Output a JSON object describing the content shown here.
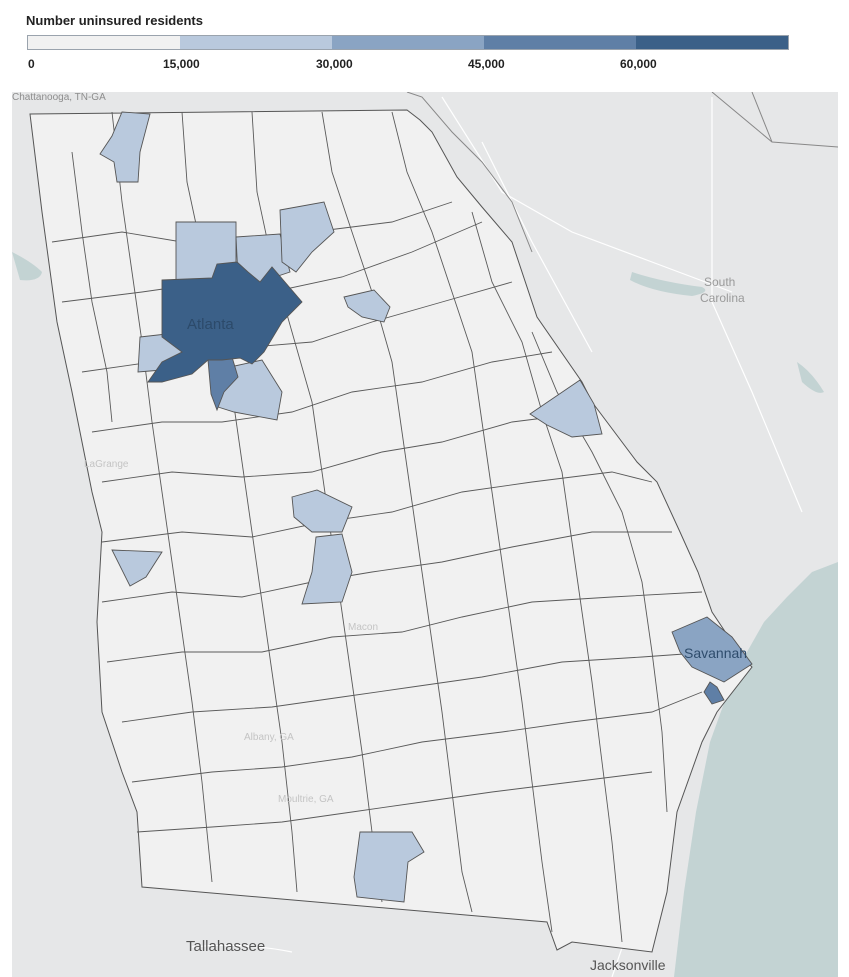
{
  "legend": {
    "title": "Number uninsured residents",
    "ticks": [
      "0",
      "15,000",
      "30,000",
      "45,000",
      "60,000"
    ],
    "colors": [
      "#f1f1f1",
      "#b9c9dd",
      "#8aa4c3",
      "#5f7fa6",
      "#3b6088"
    ]
  },
  "map": {
    "labels": {
      "chattanooga": "Chattanooga, TN-GA",
      "south": "South",
      "carolina": "Carolina",
      "atlanta": "Atlanta",
      "savannah": "Savannah",
      "tallahassee": "Tallahassee",
      "jacksonville": "Jacksonville",
      "lagrange": "LaGrange",
      "albany": "Albany, GA",
      "macon": "Macon",
      "moultrie": "Moultrie, GA"
    },
    "colors": {
      "water": "#c3d3d3",
      "land": "#e6e7e8",
      "county_border": "#6b6b6b",
      "state_outline": "#888888"
    }
  }
}
